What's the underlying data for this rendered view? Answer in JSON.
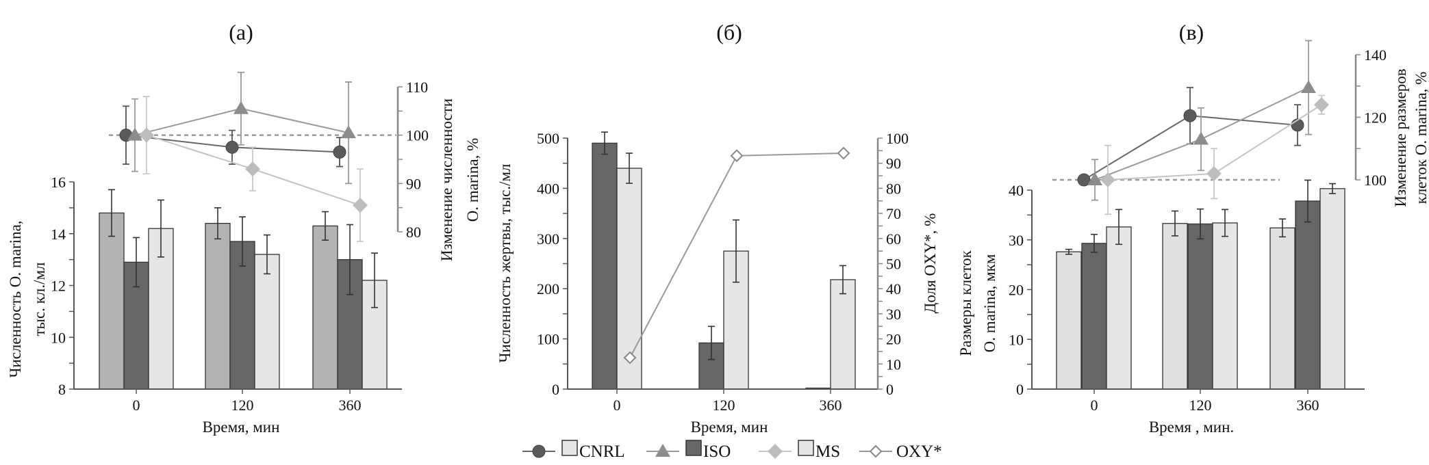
{
  "colors": {
    "cnrl_marker": "#5a5a5a",
    "iso_marker": "#8c8c8c",
    "ms_marker": "#bdbdbd",
    "oxy_marker": "#ffffff",
    "iso_bar": "#666666",
    "ms_bar": "#e6e6e6",
    "axis": "#555555"
  },
  "legend": [
    {
      "label": "",
      "kind": "line-circle",
      "series": "CNRL"
    },
    {
      "label": "CNRL",
      "kind": "box-light"
    },
    {
      "label": "",
      "kind": "line-triangle",
      "series": "ISO"
    },
    {
      "label": "ISO",
      "kind": "box-dark"
    },
    {
      "label": "",
      "kind": "line-diamond",
      "series": "MS"
    },
    {
      "label": "MS",
      "kind": "box-light"
    },
    {
      "label": "OXY*",
      "kind": "line-open-diamond"
    }
  ],
  "chart_data": [
    {
      "panel": "(а)",
      "type": "bar+line",
      "categories": [
        "0",
        "120",
        "360"
      ],
      "xlabel": "Время, мин",
      "ylabel": [
        "Численность O. marina,",
        "тыс. кл./мл"
      ],
      "ylim": [
        8,
        16
      ],
      "yticks": [
        "8",
        "10",
        "12",
        "14",
        "16"
      ],
      "y2label": [
        "Изменение численности",
        "O. marina, %"
      ],
      "y2lim": [
        80,
        110
      ],
      "y2ticks": [
        "80",
        "90",
        "100",
        "110"
      ],
      "reference_line": 100,
      "bar_colors": {
        "CNRL": "#b3b3b3",
        "ISO": "#666666",
        "MS": "#e6e6e6"
      },
      "bars": [
        {
          "name": "CNRL",
          "values": [
            14.8,
            14.4,
            14.3
          ],
          "err": [
            0.9,
            0.6,
            0.55
          ]
        },
        {
          "name": "ISO",
          "values": [
            12.9,
            13.7,
            13.0
          ],
          "err": [
            0.95,
            0.95,
            1.35
          ]
        },
        {
          "name": "MS",
          "values": [
            14.2,
            13.2,
            12.2
          ],
          "err": [
            1.1,
            0.75,
            1.05
          ]
        }
      ],
      "lines": [
        {
          "name": "CNRL",
          "values": [
            100,
            97.5,
            96.5
          ],
          "err": [
            6,
            3.5,
            3
          ]
        },
        {
          "name": "ISO",
          "values": [
            100,
            105.5,
            100.5
          ],
          "err": [
            7.5,
            7.5,
            10.5
          ]
        },
        {
          "name": "MS",
          "values": [
            100,
            93,
            85.5
          ],
          "err": [
            8,
            4.5,
            7.5
          ]
        }
      ]
    },
    {
      "panel": "(б)",
      "type": "bar+line",
      "categories": [
        "0",
        "120",
        "360"
      ],
      "xlabel": "Время, мин",
      "ylabel": [
        "Численность жертвы, тыс./мл"
      ],
      "ylim": [
        0,
        500
      ],
      "yticks": [
        "0",
        "100",
        "200",
        "300",
        "400",
        "500"
      ],
      "y2label": [
        "Доля OXY*, %"
      ],
      "y2lim": [
        0,
        100
      ],
      "y2ticks": [
        "0",
        "10",
        "20",
        "30",
        "40",
        "50",
        "60",
        "70",
        "80",
        "90",
        "100"
      ],
      "bar_colors": {
        "ISO": "#666666",
        "MS": "#e6e6e6"
      },
      "bars": [
        {
          "name": "ISO",
          "values": [
            490,
            92,
            2
          ],
          "err": [
            22,
            33,
            0
          ]
        },
        {
          "name": "MS",
          "values": [
            440,
            275,
            218
          ],
          "err": [
            30,
            62,
            28
          ]
        }
      ],
      "lines": [
        {
          "name": "OXY*",
          "values": [
            12.5,
            93,
            94
          ],
          "err": [
            0,
            0,
            0
          ]
        }
      ]
    },
    {
      "panel": "(в)",
      "type": "bar+line",
      "categories": [
        "0",
        "120",
        "360"
      ],
      "xlabel": "Время , мин.",
      "ylabel": [
        "Размеры клеток",
        "O. marina, мкм"
      ],
      "ylim": [
        0,
        40
      ],
      "yticks": [
        "0",
        "10",
        "20",
        "30",
        "40"
      ],
      "y2label": [
        "Изменение размеров",
        "клеток O. marina, %"
      ],
      "y2lim": [
        100,
        140
      ],
      "y2ticks": [
        "100",
        "120",
        "140"
      ],
      "reference_line": 100,
      "bar_colors": {
        "CNRL": "#e0e0e0",
        "ISO": "#666666",
        "MS": "#e6e6e6"
      },
      "bars": [
        {
          "name": "CNRL",
          "values": [
            27.6,
            33.3,
            32.4
          ],
          "err": [
            0.5,
            2.5,
            1.8
          ]
        },
        {
          "name": "ISO",
          "values": [
            29.3,
            33.2,
            37.8
          ],
          "err": [
            1.8,
            3.0,
            4.2
          ]
        },
        {
          "name": "MS",
          "values": [
            32.6,
            33.4,
            40.3
          ],
          "err": [
            3.5,
            2.7,
            1.0
          ]
        }
      ],
      "lines": [
        {
          "name": "CNRL",
          "values": [
            100,
            120.5,
            117.5
          ],
          "err": [
            1,
            9,
            6.5
          ]
        },
        {
          "name": "ISO",
          "values": [
            100,
            113,
            129.5
          ],
          "err": [
            6.5,
            10,
            15
          ]
        },
        {
          "name": "MS",
          "values": [
            100,
            102,
            124
          ],
          "err": [
            11,
            8,
            3
          ]
        }
      ]
    }
  ]
}
